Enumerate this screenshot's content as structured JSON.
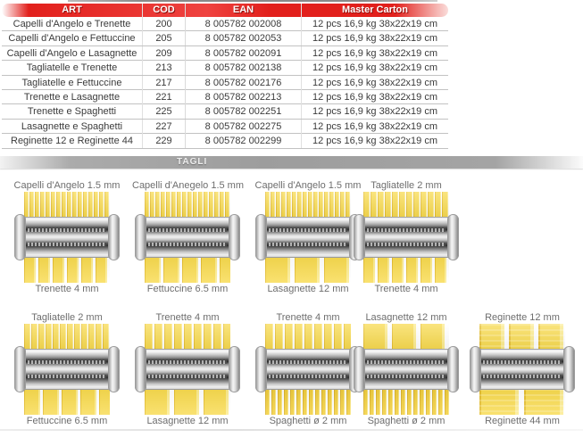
{
  "banner": {
    "label": "TAGLI"
  },
  "colors": {
    "header_red": "#e2201c",
    "banner_gray": "#9d9d9d",
    "pasta_yellow": "#f8da4d"
  },
  "table": {
    "headers": [
      "ART",
      "COD",
      "EAN",
      "Master Carton"
    ],
    "rows": [
      [
        "Capelli d'Angelo e Trenette",
        "200",
        "8 005782 002008",
        "12 pcs 16,9 kg 38x22x19 cm"
      ],
      [
        "Capelli d'Angelo e Fettuccine",
        "205",
        "8 005782 002053",
        "12 pcs 16,9 kg 38x22x19 cm"
      ],
      [
        "Capelli d'Angelo e Lasagnette",
        "209",
        "8 005782 002091",
        "12 pcs 16,9 kg 38x22x19 cm"
      ],
      [
        "Tagliatelle e Trenette",
        "213",
        "8 005782 002138",
        "12 pcs 16,9 kg 38x22x19 cm"
      ],
      [
        "Tagliatelle e Fettuccine",
        "217",
        "8 005782 002176",
        "12 pcs 16,9 kg 38x22x19 cm"
      ],
      [
        "Trenette e Lasagnette",
        "221",
        "8 005782 002213",
        "12 pcs 16,9 kg 38x22x19 cm"
      ],
      [
        "Trenette e Spaghetti",
        "225",
        "8 005782 002251",
        "12 pcs 16,9 kg 38x22x19 cm"
      ],
      [
        "Lasagnette e Spaghetti",
        "227",
        "8 005782 002275",
        "12 pcs 16,9 kg 38x22x19 cm"
      ],
      [
        "Reginette 12 e Reginette 44",
        "229",
        "8 005782 002299",
        "12 pcs 16,9 kg 38x22x19 cm"
      ]
    ]
  },
  "cutters": {
    "row1": [
      {
        "top": "Capelli d'Angelo 1.5 mm",
        "bottom": "Trenette 4 mm"
      },
      {
        "top": "Capelli d'Anegelo 1.5 mm",
        "bottom": "Fettuccine 6.5 mm"
      },
      {
        "top": "Capelli d'Angelo 1.5 mm",
        "bottom": "Lasagnette 12 mm"
      },
      {
        "top": "Tagliatelle 2 mm",
        "bottom": "Trenette 4 mm"
      }
    ],
    "row2": [
      {
        "top": "Tagliatelle 2 mm",
        "bottom": "Fettuccine 6.5 mm"
      },
      {
        "top": "Trenette 4 mm",
        "bottom": "Lasagnette 12 mm"
      },
      {
        "top": "Trenette 4 mm",
        "bottom": "Spaghetti ø 2 mm"
      },
      {
        "top": "Lasagnette 12 mm",
        "bottom": "Spaghetti ø 2 mm"
      },
      {
        "top": "Reginette 12 mm",
        "bottom": "Reginette 44 mm"
      }
    ]
  }
}
